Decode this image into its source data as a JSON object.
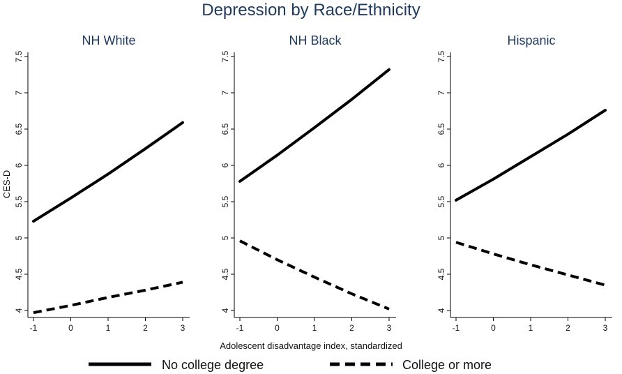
{
  "chart_data": {
    "type": "line",
    "title": "Depression by Race/Ethnicity",
    "xlabel": "Adolescent disadvantage index, standardized",
    "ylabel": "CES-D",
    "xlim": [
      -1,
      3
    ],
    "ylim": [
      4,
      7.5
    ],
    "x_ticks": [
      -1,
      0,
      1,
      2,
      3
    ],
    "x_tick_labels": [
      "-1",
      "0",
      "1",
      "2",
      "3"
    ],
    "y_ticks": [
      4,
      4.5,
      5,
      5.5,
      6,
      6.5,
      7,
      7.5
    ],
    "y_tick_labels": [
      "4",
      "4.5",
      "5",
      "5.5",
      "6",
      "6.5",
      "7",
      "7.5"
    ],
    "grid": false,
    "legend_position": "bottom",
    "legend": [
      {
        "name": "No college degree",
        "style": "solid"
      },
      {
        "name": "College or more",
        "style": "dashed"
      }
    ],
    "panels": [
      {
        "title": "NH White",
        "x": [
          -1,
          0,
          1,
          2,
          3
        ],
        "series": [
          {
            "name": "No college degree",
            "style": "solid",
            "values": [
              5.23,
              5.55,
              5.88,
              6.23,
              6.59
            ]
          },
          {
            "name": "College or more",
            "style": "dashed",
            "values": [
              3.97,
              4.07,
              4.18,
              4.28,
              4.39
            ]
          }
        ]
      },
      {
        "title": "NH Black",
        "x": [
          -1,
          0,
          1,
          2,
          3
        ],
        "series": [
          {
            "name": "No college degree",
            "style": "solid",
            "values": [
              5.78,
              6.14,
              6.52,
              6.91,
              7.32
            ]
          },
          {
            "name": "College or more",
            "style": "dashed",
            "values": [
              4.96,
              4.7,
              4.46,
              4.23,
              4.02
            ]
          }
        ]
      },
      {
        "title": "Hispanic",
        "x": [
          -1,
          0,
          1,
          2,
          3
        ],
        "series": [
          {
            "name": "No college degree",
            "style": "solid",
            "values": [
              5.52,
              5.81,
              6.12,
              6.43,
              6.76
            ]
          },
          {
            "name": "College or more",
            "style": "dashed",
            "values": [
              4.94,
              4.78,
              4.63,
              4.49,
              4.35
            ]
          }
        ]
      }
    ]
  }
}
